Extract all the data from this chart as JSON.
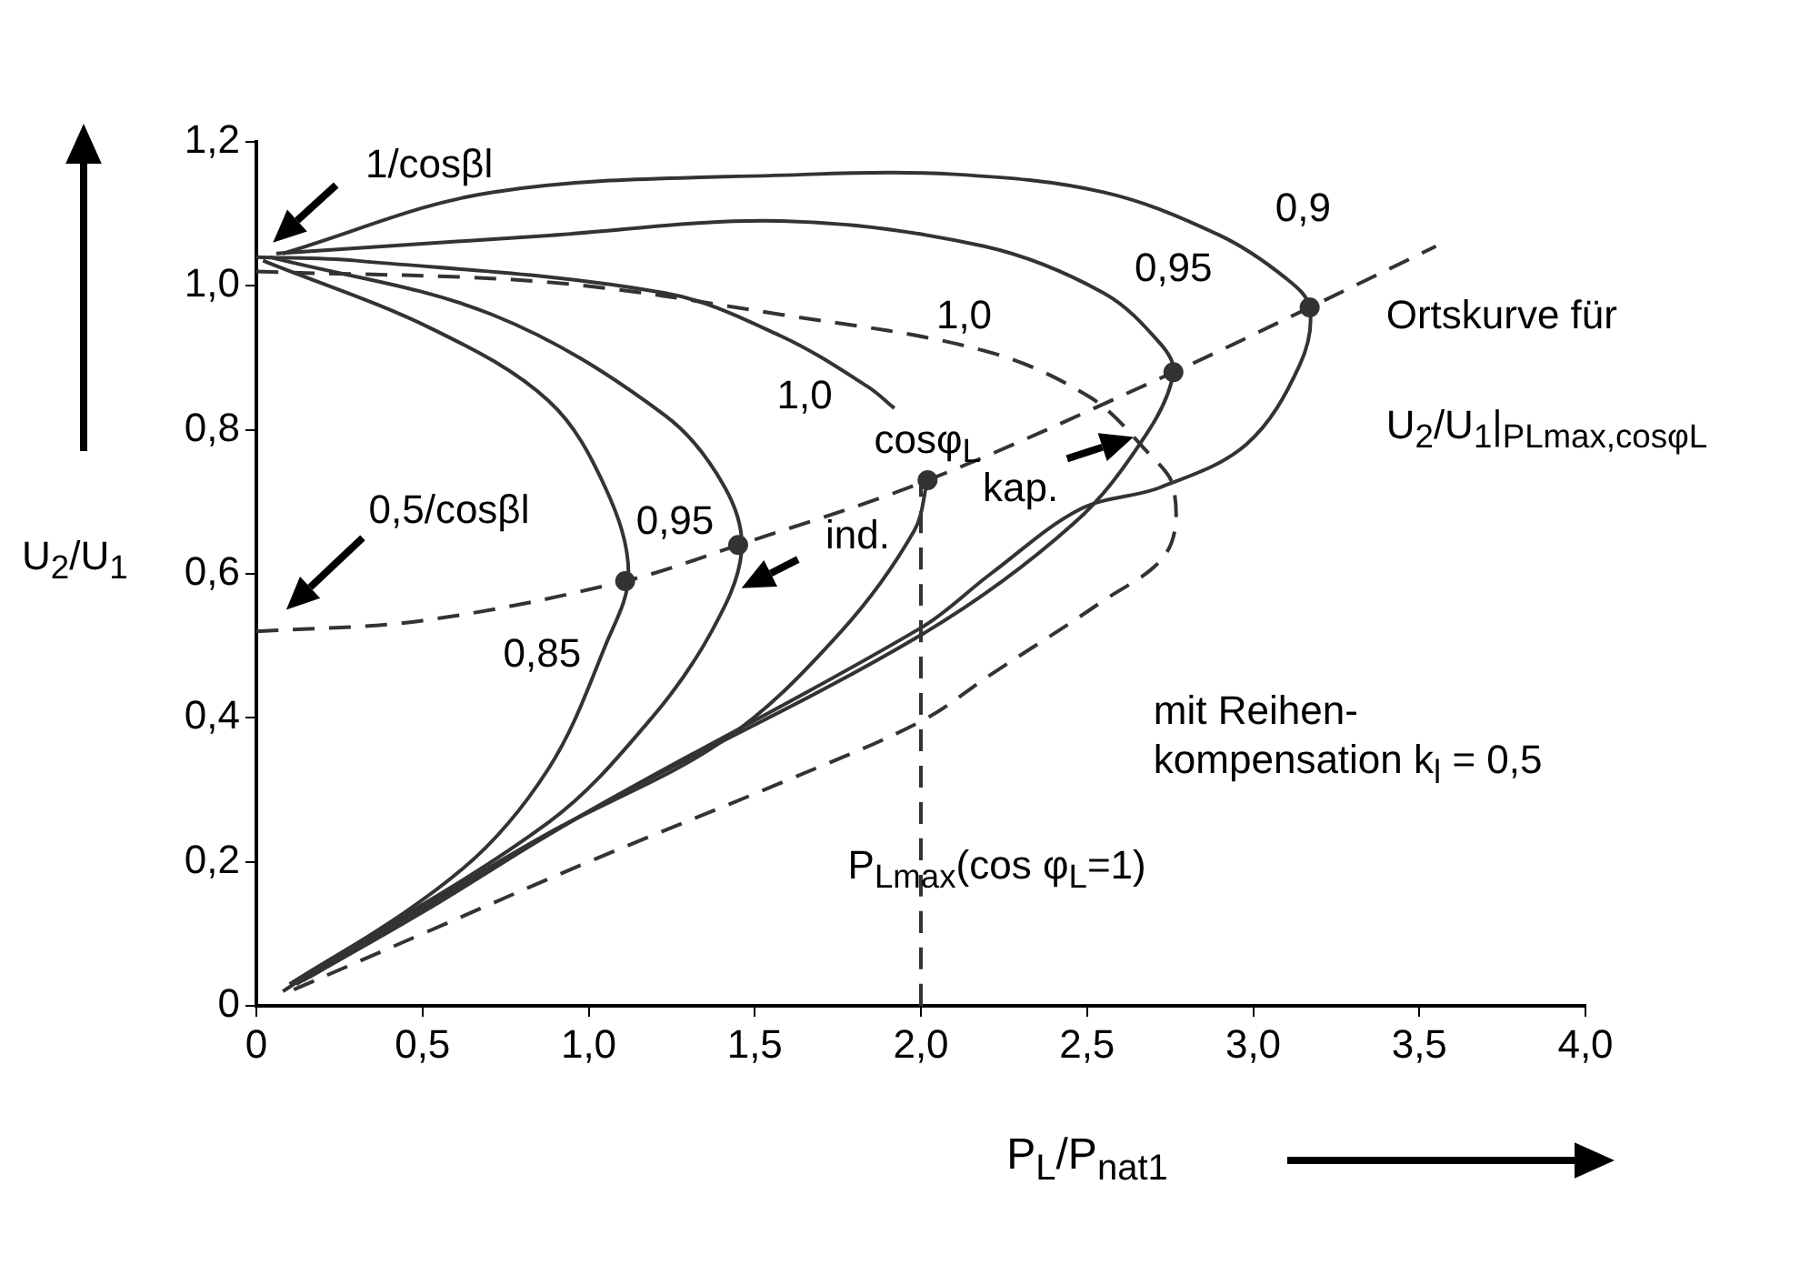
{
  "chart_data": {
    "type": "line",
    "xlabel": "P$_{L}$/P$_{nat1}$",
    "ylabel": "U$_{2}$/U$_{1}$",
    "xlim": [
      0,
      4.0
    ],
    "ylim": [
      0,
      1.2
    ],
    "xticks": [
      0,
      {
        "value": 0.5,
        "label": "0,5"
      },
      {
        "value": 1.0,
        "label": "1,0"
      },
      {
        "value": 1.5,
        "label": "1,5"
      },
      {
        "value": 2.0,
        "label": "2,0"
      },
      {
        "value": 2.5,
        "label": "2,5"
      },
      {
        "value": 3.0,
        "label": "3,0"
      },
      {
        "value": 3.5,
        "label": "3,5"
      },
      {
        "value": 4.0,
        "label": "4,0"
      }
    ],
    "yticks": [
      0,
      {
        "value": 0.2,
        "label": "0,2"
      },
      {
        "value": 0.4,
        "label": "0,4"
      },
      {
        "value": 0.6,
        "label": "0,6"
      },
      {
        "value": 0.8,
        "label": "0,8"
      },
      {
        "value": 1.0,
        "label": "1,0"
      },
      {
        "value": 1.2,
        "label": "1,2"
      }
    ],
    "grid": false,
    "legend": false,
    "marker": "none",
    "series": [
      {
        "color": "#333333",
        "line_style": "solid",
        "x": [
          0.02,
          0.53,
          0.88,
          1.05,
          1.12,
          1.05,
          0.88,
          0.62,
          0.08
        ],
        "values": [
          1.035,
          0.94,
          0.84,
          0.72,
          0.6,
          0.5,
          0.33,
          0.19,
          0.02
        ]
      },
      {
        "color": "#333333",
        "line_style": "solid",
        "x": [
          0.04,
          0.71,
          1.23,
          1.41,
          1.46,
          1.37,
          1.19,
          0.88,
          0.1
        ],
        "values": [
          1.04,
          0.96,
          0.82,
          0.72,
          0.63,
          0.52,
          0.4,
          0.255,
          0.03
        ]
      },
      {
        "color": "#333333",
        "line_style": "solid",
        "x": [
          0,
          0.3,
          1.23,
          1.58,
          1.84,
          1.92,
          null,
          2.02,
          1.98,
          1.76,
          1.41,
          0.88,
          0.53,
          0.12
        ],
        "values": [
          1.04,
          1.035,
          0.99,
          0.93,
          0.86,
          0.83,
          null,
          0.73,
          0.66,
          0.52,
          0.37,
          0.24,
          0.145,
          0.03
        ]
      },
      {
        "color": "#333333",
        "line_style": "solid",
        "x": [
          0.06,
          0.88,
          1.58,
          2.19,
          2.55,
          2.72,
          2.76,
          2.68,
          2.46,
          2.0,
          1.0,
          0.5,
          0.14
        ],
        "values": [
          1.045,
          1.07,
          1.09,
          1.055,
          0.99,
          0.92,
          0.88,
          0.795,
          0.67,
          0.515,
          0.27,
          0.13,
          0.035
        ]
      },
      {
        "color": "#333333",
        "line_style": "solid",
        "x": [
          0.08,
          0.71,
          1.67,
          2.1,
          2.55,
          2.9,
          3.1,
          3.17,
          3.14,
          2.98,
          2.72,
          2.48,
          2.21,
          2.0,
          1.0,
          0.16
        ],
        "values": [
          1.045,
          1.13,
          1.155,
          1.155,
          1.13,
          1.07,
          1.01,
          0.97,
          0.89,
          0.78,
          0.72,
          0.69,
          0.6,
          0.525,
          0.27,
          0.04
        ]
      },
      {
        "color": "#333333",
        "line_style": "dashed",
        "x": [
          0,
          0.88,
          1.58,
          2.19,
          2.51,
          2.68,
          2.76,
          2.74,
          2.54,
          2.21,
          2.0,
          1.58,
          1.0,
          0.5,
          0.1
        ],
        "values": [
          1.02,
          1.005,
          0.96,
          0.91,
          0.845,
          0.77,
          0.72,
          0.63,
          0.56,
          0.46,
          0.395,
          0.31,
          0.2,
          0.1,
          0.02
        ]
      },
      {
        "color": "#333333",
        "line_style": "dashed",
        "x": [
          0,
          0.5,
          1.11,
          1.45,
          2.02,
          2.76,
          3.17,
          3.55
        ],
        "values": [
          0.52,
          0.535,
          0.59,
          0.64,
          0.73,
          0.88,
          0.97,
          1.055
        ]
      },
      {
        "color": "#333333",
        "line_style": "dashed",
        "x": [
          2.0,
          2.0
        ],
        "values": [
          0,
          0.73
        ]
      },
      {
        "type": "scatter",
        "marker": "circle",
        "color": "#333333",
        "x": [
          1.11,
          1.45,
          2.02,
          2.76,
          3.17
        ],
        "values": [
          0.59,
          0.64,
          0.73,
          0.88,
          0.97
        ]
      }
    ],
    "annotations": [
      "1/cosβl",
      "0,5/cosβl",
      "0,85",
      "0,95",
      "1,0",
      "1,0",
      "0,95",
      "0,9",
      "cosφ$_{L}$",
      "ind.",
      "kap.",
      "P$_{Lmax}$(cos φ$_{L}$=1)",
      "mit Reihen-\nkompensation k$_{l}$ = 0,5",
      "Ortskurve für",
      "U$_{2}$/U$_{1}$|$_{PLmax,cosφL}$"
    ]
  }
}
